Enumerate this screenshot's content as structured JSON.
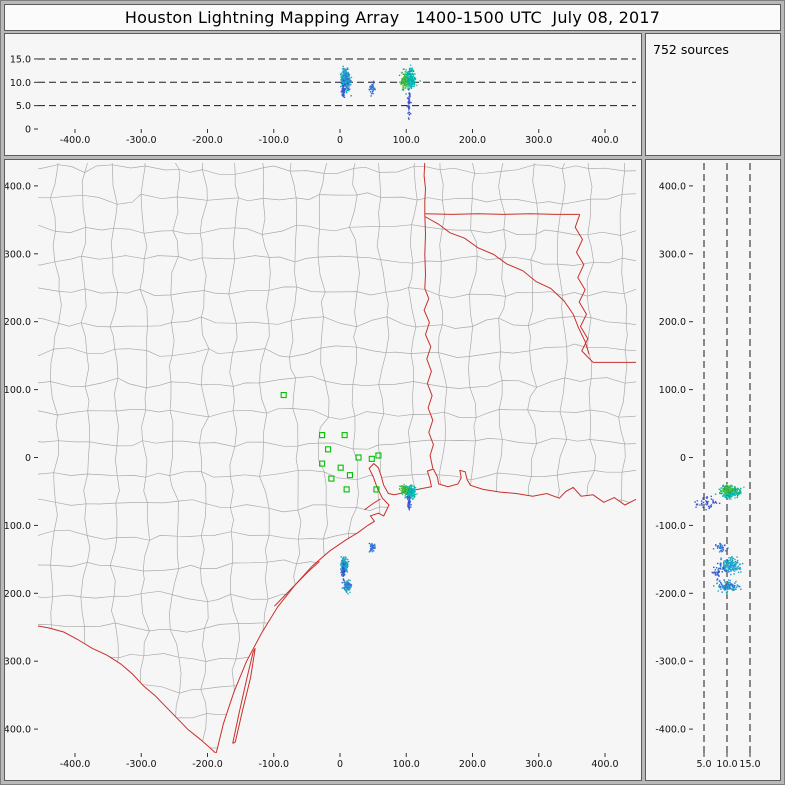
{
  "chart_data": {
    "type": "scatter",
    "title": "Houston Lightning Mapping Array   1400-1500 UTC  July 08, 2017",
    "sources_label": "752 sources",
    "seed": 42,
    "panels": {
      "top": {
        "ylim": [
          0,
          19.7
        ],
        "yticks": [
          {
            "v": 15,
            "label": "15.0"
          },
          {
            "v": 10,
            "label": "10.0"
          },
          {
            "v": 5,
            "label": "5.0"
          },
          {
            "v": 0,
            "label": "0"
          }
        ],
        "dashed_altitudes": [
          5,
          10,
          15
        ],
        "xticks": [
          {
            "v": -400,
            "label": "-400.0"
          },
          {
            "v": -300,
            "label": "-300.0"
          },
          {
            "v": -200,
            "label": "-200.0"
          },
          {
            "v": -100,
            "label": "-100.0"
          },
          {
            "v": 0,
            "label": "0"
          },
          {
            "v": 100,
            "label": "100.0"
          },
          {
            "v": 200,
            "label": "200.0"
          },
          {
            "v": 300,
            "label": "300.0"
          },
          {
            "v": 400,
            "label": "400.0"
          }
        ]
      },
      "map": {
        "xlim": [
          -456,
          447
        ],
        "ylim": [
          -435,
          434
        ],
        "xticks": [
          {
            "v": -400,
            "label": "-400.0"
          },
          {
            "v": -300,
            "label": "-300.0"
          },
          {
            "v": -200,
            "label": "-200.0"
          },
          {
            "v": -100,
            "label": "-100.0"
          },
          {
            "v": 0,
            "label": "0"
          },
          {
            "v": 100,
            "label": "100.0"
          },
          {
            "v": 200,
            "label": "200.0"
          },
          {
            "v": 300,
            "label": "300.0"
          },
          {
            "v": 400,
            "label": "400.0"
          }
        ],
        "yticks": [
          {
            "v": 400,
            "label": "400.0"
          },
          {
            "v": 300,
            "label": "300.0"
          },
          {
            "v": 200,
            "label": "200.0"
          },
          {
            "v": 100,
            "label": "100.0"
          },
          {
            "v": 0,
            "label": "0"
          },
          {
            "v": -100,
            "label": "-100.0"
          },
          {
            "v": -200,
            "label": "-200.0"
          },
          {
            "v": -300,
            "label": "-300.0"
          },
          {
            "v": -400,
            "label": "-400.0"
          }
        ]
      },
      "right": {
        "xlim": [
          2.6,
          21
        ],
        "xticks": [
          {
            "v": 5,
            "label": "5.0"
          },
          {
            "v": 10,
            "label": "10.0"
          },
          {
            "v": 15,
            "label": "15.0"
          }
        ],
        "dashed_altitudes": [
          5,
          10,
          15
        ],
        "yticks": [
          {
            "v": 400,
            "label": "400.0"
          },
          {
            "v": 300,
            "label": "300.0"
          },
          {
            "v": 200,
            "label": "200.0"
          },
          {
            "v": 100,
            "label": "100.0"
          },
          {
            "v": 0,
            "label": "0"
          },
          {
            "v": -100,
            "label": "-100.0"
          },
          {
            "v": -200,
            "label": "-200.0"
          },
          {
            "v": -300,
            "label": "-300.0"
          },
          {
            "v": -400,
            "label": "-400.0"
          }
        ]
      }
    },
    "stations_km": [
      [
        -85,
        92
      ],
      [
        -27,
        33
      ],
      [
        7,
        33
      ],
      [
        -18,
        12
      ],
      [
        -27,
        -9
      ],
      [
        1,
        -15
      ],
      [
        15,
        -26
      ],
      [
        -13,
        -31
      ],
      [
        28,
        0
      ],
      [
        48,
        -2
      ],
      [
        58,
        3
      ],
      [
        10,
        -47
      ],
      [
        55,
        -47
      ]
    ],
    "clusters": [
      {
        "name": "storm-east-core",
        "x": 106,
        "y": -51,
        "z": 10.8,
        "sx": 3.5,
        "sy": 4.5,
        "sz": 1.0,
        "n": 257,
        "colors": [
          "#00b3ae",
          "#10bfc2",
          "#00a79a",
          "#26c5cb",
          "#00b590"
        ]
      },
      {
        "name": "storm-east-new",
        "x": 97,
        "y": -48,
        "z": 10.4,
        "sx": 2.6,
        "sy": 2.8,
        "sz": 0.9,
        "n": 80,
        "colors": [
          "#33b233",
          "#45c03c",
          "#2aa62e",
          "#55c84d"
        ]
      },
      {
        "name": "storm-east-low",
        "x": 104,
        "y": -67,
        "z": 5.4,
        "sx": 1.1,
        "sy": 4.5,
        "sz": 1.5,
        "n": 50,
        "colors": [
          "#3a57d4",
          "#2f49c8",
          "#4b63da"
        ]
      },
      {
        "name": "storm-south-upper",
        "x": 7,
        "y": -159,
        "z": 10.8,
        "sx": 2.8,
        "sy": 5.5,
        "sz": 1.1,
        "n": 160,
        "colors": [
          "#19b4c4",
          "#2b92d6",
          "#0aa8b8",
          "#38a0d0"
        ]
      },
      {
        "name": "storm-south-far",
        "x": 11,
        "y": -190,
        "z": 10.3,
        "sx": 2.4,
        "sy": 3.6,
        "sz": 1.2,
        "n": 130,
        "colors": [
          "#2b7fd6",
          "#14b0bd",
          "#3b6ad8",
          "#1ab4b4"
        ]
      },
      {
        "name": "storm-south-low",
        "x": 5,
        "y": -168,
        "z": 8.2,
        "sx": 1.8,
        "sy": 7,
        "sz": 0.8,
        "n": 40,
        "colors": [
          "#3a5ad0",
          "#2f4fc8"
        ]
      },
      {
        "name": "storm-mid",
        "x": 48,
        "y": -132,
        "z": 8.8,
        "sx": 1.8,
        "sy": 3.2,
        "sz": 1.0,
        "n": 35,
        "colors": [
          "#3f51d0",
          "#3568d8",
          "#2b8fd0"
        ]
      }
    ],
    "basemap": {
      "land_color": "#f6f6f6",
      "county_line_color": "#ababab",
      "border_color": "#c9302c",
      "station_color": "#00c000",
      "mesh": {
        "step": 45,
        "jitter": 8,
        "seed": 7
      },
      "coast": [
        [
          -187,
          -436
        ],
        [
          -176,
          -392
        ],
        [
          -160,
          -345
        ],
        [
          -141,
          -300
        ],
        [
          -118,
          -258
        ],
        [
          -94,
          -220
        ],
        [
          -68,
          -188
        ],
        [
          -42,
          -160
        ],
        [
          -16,
          -138
        ],
        [
          8,
          -122
        ],
        [
          28,
          -110
        ],
        [
          42,
          -100
        ],
        [
          52,
          -94
        ],
        [
          46,
          -86
        ],
        [
          58,
          -82
        ],
        [
          66,
          -86
        ],
        [
          74,
          -70
        ],
        [
          64,
          -60
        ],
        [
          56,
          -44
        ],
        [
          50,
          -28
        ],
        [
          44,
          -16
        ],
        [
          51,
          -9
        ],
        [
          58,
          -15
        ],
        [
          62,
          -27
        ],
        [
          66,
          -41
        ],
        [
          73,
          -53
        ],
        [
          82,
          -55
        ],
        [
          96,
          -52
        ],
        [
          112,
          -48
        ],
        [
          127,
          -45
        ],
        [
          138,
          -43
        ],
        [
          136,
          -33
        ],
        [
          132,
          -20
        ],
        [
          141,
          -17
        ],
        [
          147,
          -29
        ],
        [
          149,
          -39
        ],
        [
          163,
          -43
        ],
        [
          178,
          -39
        ],
        [
          183,
          -30
        ],
        [
          181,
          -19
        ],
        [
          189,
          -21
        ],
        [
          192,
          -33
        ],
        [
          197,
          -41
        ],
        [
          216,
          -47
        ],
        [
          242,
          -51
        ],
        [
          266,
          -53
        ],
        [
          291,
          -57
        ],
        [
          312,
          -53
        ],
        [
          331,
          -60
        ],
        [
          341,
          -50
        ],
        [
          352,
          -44
        ],
        [
          364,
          -57
        ],
        [
          382,
          -55
        ],
        [
          398,
          -66
        ],
        [
          414,
          -59
        ],
        [
          430,
          -70
        ],
        [
          446,
          -62
        ],
        [
          462,
          -70
        ]
      ],
      "rio_grande": [
        [
          -462,
          -247
        ],
        [
          -440,
          -251
        ],
        [
          -417,
          -257
        ],
        [
          -396,
          -268
        ],
        [
          -374,
          -281
        ],
        [
          -352,
          -291
        ],
        [
          -331,
          -304
        ],
        [
          -313,
          -319
        ],
        [
          -296,
          -337
        ],
        [
          -279,
          -351
        ],
        [
          -263,
          -367
        ],
        [
          -246,
          -384
        ],
        [
          -229,
          -401
        ],
        [
          -211,
          -415
        ],
        [
          -197,
          -427
        ],
        [
          -187,
          -436
        ]
      ],
      "borders": [
        [
          [
            128,
            436
          ],
          [
            127,
            415
          ],
          [
            129,
            396
          ],
          [
            128,
            377
          ],
          [
            128,
            359
          ]
        ],
        [
          [
            128,
            359
          ],
          [
            168,
            358
          ],
          [
            208,
            359
          ],
          [
            248,
            358
          ],
          [
            288,
            359
          ],
          [
            326,
            358
          ],
          [
            362,
            358
          ]
        ],
        [
          [
            362,
            358
          ],
          [
            355,
            339
          ],
          [
            366,
            321
          ],
          [
            357,
            302
          ],
          [
            368,
            284
          ],
          [
            359,
            265
          ],
          [
            370,
            247
          ],
          [
            361,
            229
          ],
          [
            372,
            211
          ],
          [
            363,
            193
          ],
          [
            374,
            175
          ],
          [
            365,
            157
          ],
          [
            376,
            146
          ],
          [
            382,
            140
          ]
        ],
        [
          [
            382,
            140
          ],
          [
            420,
            140
          ],
          [
            462,
            140
          ]
        ],
        [
          [
            128,
            359
          ],
          [
            129,
            329
          ],
          [
            128,
            299
          ],
          [
            129,
            269
          ],
          [
            128,
            249
          ],
          [
            134,
            234
          ],
          [
            127,
            217
          ],
          [
            135,
            199
          ],
          [
            129,
            181
          ],
          [
            137,
            163
          ],
          [
            131,
            145
          ],
          [
            138,
            127
          ],
          [
            132,
            109
          ],
          [
            139,
            91
          ],
          [
            133,
            73
          ],
          [
            140,
            55
          ],
          [
            134,
            37
          ],
          [
            141,
            19
          ],
          [
            136,
            3
          ],
          [
            140,
            -16
          ]
        ],
        [
          [
            128,
            355
          ],
          [
            148,
            344
          ],
          [
            166,
            331
          ],
          [
            188,
            323
          ],
          [
            208,
            309
          ],
          [
            232,
            299
          ],
          [
            252,
            285
          ],
          [
            276,
            275
          ],
          [
            296,
            259
          ],
          [
            318,
            249
          ],
          [
            338,
            231
          ],
          [
            352,
            211
          ],
          [
            360,
            191
          ],
          [
            370,
            171
          ],
          [
            376,
            152
          ]
        ]
      ],
      "islands": [
        [
          [
            -162,
            -421
          ],
          [
            -152,
            -375
          ],
          [
            -141,
            -327
          ],
          [
            -131,
            -286
          ],
          [
            -128,
            -281
          ],
          [
            -135,
            -324
          ],
          [
            -147,
            -372
          ],
          [
            -158,
            -419
          ],
          [
            -162,
            -421
          ]
        ],
        [
          [
            -99,
            -219
          ],
          [
            -73,
            -193
          ],
          [
            -49,
            -169
          ],
          [
            -31,
            -153
          ]
        ],
        [
          [
            37,
            -77
          ],
          [
            51,
            -67
          ],
          [
            61,
            -61
          ]
        ]
      ]
    }
  }
}
